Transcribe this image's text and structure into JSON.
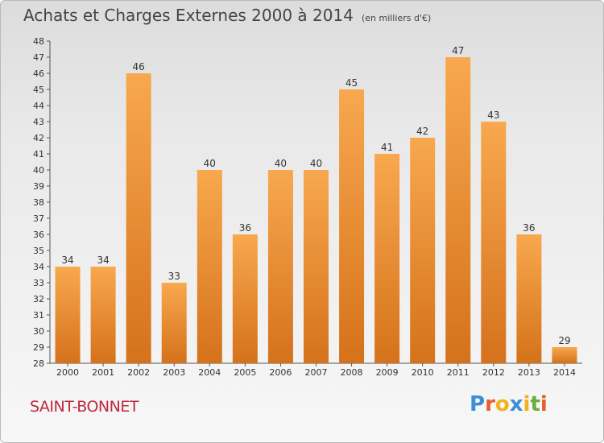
{
  "header": {
    "title": "Achats et Charges Externes 2000 à 2014",
    "subtitle": "(en milliers d'€)"
  },
  "footer": {
    "commune": "SAINT-BONNET",
    "logo_letters": [
      "P",
      "r",
      "o",
      "x",
      "i",
      "t",
      "i"
    ]
  },
  "colors": {
    "bar_top": "#f8a84e",
    "bar_bottom": "#d5721b",
    "logo": [
      "#3b8fd6",
      "#e95c2b",
      "#f2b21b",
      "#3b8fd6",
      "#f2b21b",
      "#6aae3a",
      "#e95c2b"
    ]
  },
  "chart_data": {
    "type": "bar",
    "categories": [
      "2000",
      "2001",
      "2002",
      "2003",
      "2004",
      "2005",
      "2006",
      "2007",
      "2008",
      "2009",
      "2010",
      "2011",
      "2012",
      "2013",
      "2014"
    ],
    "values": [
      34,
      34,
      46,
      33,
      40,
      36,
      40,
      40,
      45,
      41,
      42,
      47,
      43,
      36,
      29
    ],
    "ylim": [
      28,
      48
    ],
    "yticks": [
      28,
      29,
      30,
      31,
      32,
      33,
      34,
      35,
      36,
      37,
      38,
      39,
      40,
      41,
      42,
      43,
      44,
      45,
      46,
      47,
      48
    ],
    "grid": false,
    "data_labels": true
  }
}
